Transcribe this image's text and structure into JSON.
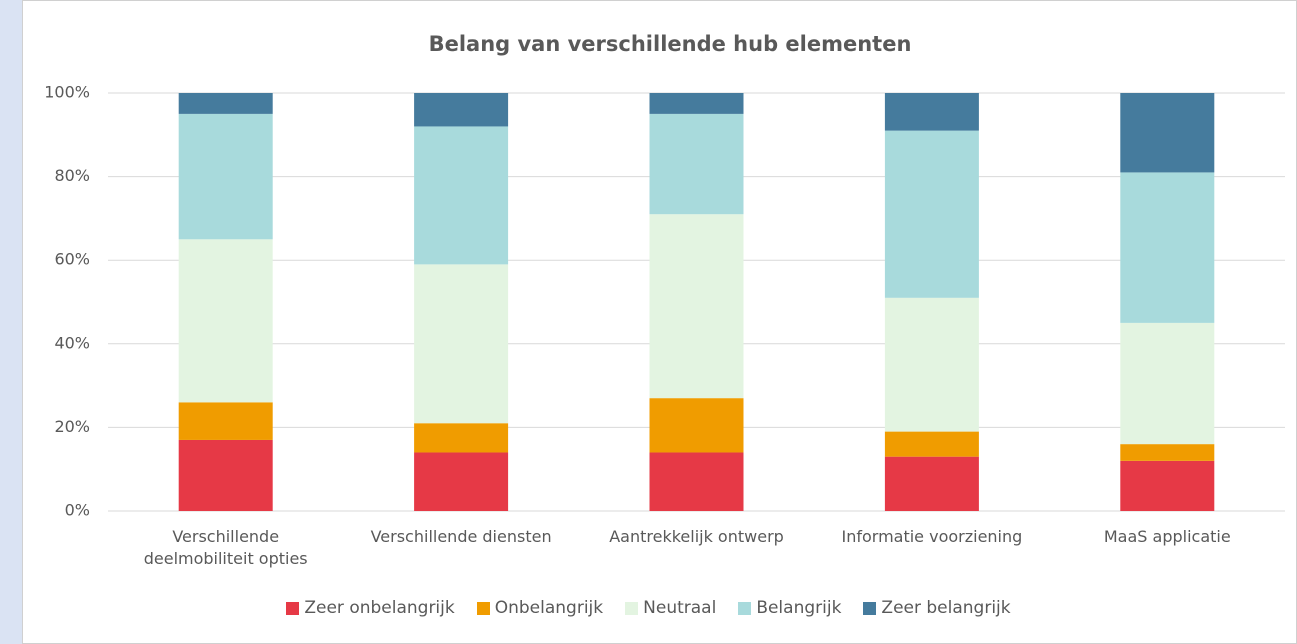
{
  "chart_data": {
    "type": "stacked_bar_percent",
    "title": "Belang van verschillende hub elementen",
    "categories": [
      "Verschillende deelmobiliteit opties",
      "Verschillende diensten",
      "Aantrekkelijk ontwerp",
      "Informatie voorziening",
      "MaaS applicatie"
    ],
    "series": [
      {
        "name": "Zeer onbelangrijk",
        "color": "#e63946",
        "values": [
          17,
          14,
          14,
          13,
          12
        ]
      },
      {
        "name": "Onbelangrijk",
        "color": "#f09c00",
        "values": [
          9,
          7,
          13,
          6,
          4
        ]
      },
      {
        "name": "Neutraal",
        "color": "#e3f4e1",
        "values": [
          39,
          38,
          44,
          32,
          29
        ]
      },
      {
        "name": "Belangrijk",
        "color": "#a8dadc",
        "values": [
          30,
          33,
          24,
          40,
          36
        ]
      },
      {
        "name": "Zeer belangrijk",
        "color": "#457b9d",
        "values": [
          5,
          8,
          5,
          9,
          19
        ]
      }
    ],
    "ylim": [
      0,
      100
    ],
    "yticks": [
      {
        "value": 0,
        "label": "0%"
      },
      {
        "value": 20,
        "label": "20%"
      },
      {
        "value": 40,
        "label": "40%"
      },
      {
        "value": 60,
        "label": "60%"
      },
      {
        "value": 80,
        "label": "80%"
      },
      {
        "value": 100,
        "label": "100%"
      }
    ],
    "grid": true,
    "legend": "bottom"
  }
}
